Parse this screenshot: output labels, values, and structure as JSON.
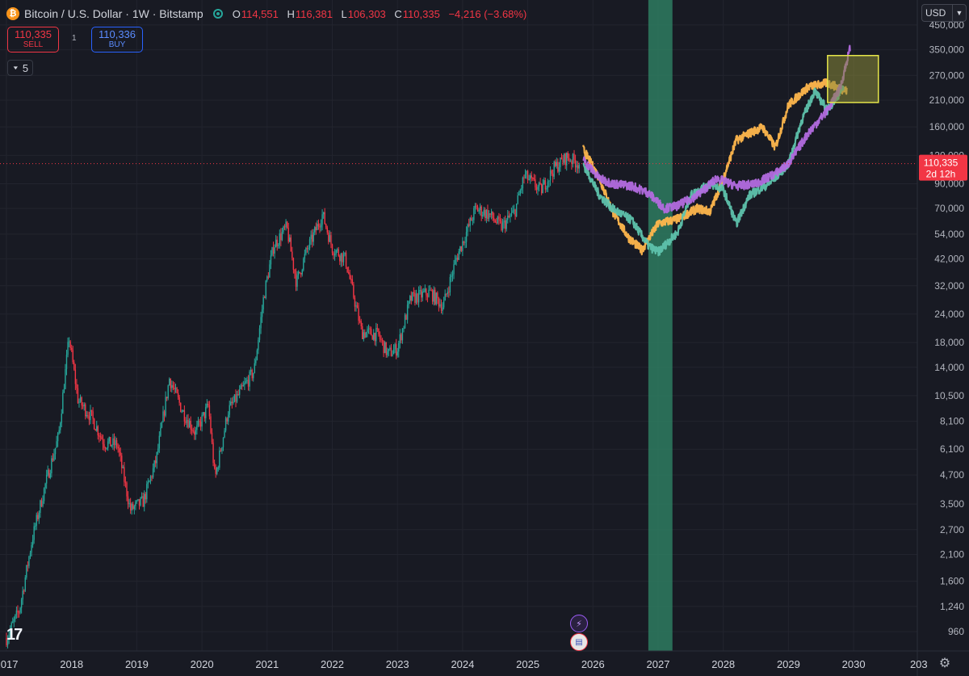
{
  "header": {
    "symbol": "Bitcoin / U.S. Dollar · 1W · Bitstamp",
    "btc_glyph": "₿",
    "ohlc": [
      {
        "key": "O",
        "value": "114,551"
      },
      {
        "key": "H",
        "value": "116,381"
      },
      {
        "key": "L",
        "value": "106,303"
      },
      {
        "key": "C",
        "value": "110,335"
      }
    ],
    "change": "−4,216 (−3.68%)"
  },
  "trade": {
    "sell_price": "110,335",
    "sell_label": "SELL",
    "spread": "1",
    "buy_price": "110,336",
    "buy_label": "BUY"
  },
  "indicators_collapse": {
    "count": "5",
    "icon": "chevron-down-icon"
  },
  "currency": {
    "label": "USD",
    "icon": "chevron-down-icon"
  },
  "logo_text": "17",
  "events": {
    "ev1_icon": "lightning-icon",
    "ev2_icon": "us-flag-icon"
  },
  "settings_icon": "gear-icon",
  "colors": {
    "background": "#181a23",
    "up": "#26a69a",
    "down": "#f23645",
    "orange": "#ffb74d",
    "teal": "#5ec3ad",
    "purple": "#b36be0",
    "band": "#2e7d60",
    "box_fill": "#8a8a3a",
    "box_stroke": "#e6e64a",
    "price_line": "#f23645"
  },
  "chart_data": {
    "type": "candlestick",
    "scale": "log",
    "grid": true,
    "x_ticks": [
      "2017",
      "2018",
      "2019",
      "2020",
      "2021",
      "2022",
      "2023",
      "2024",
      "2025",
      "2026",
      "2027",
      "2028",
      "2029",
      "2030",
      "203"
    ],
    "y_ticks": [
      "450,000",
      "350,000",
      "270,000",
      "210,000",
      "160,000",
      "120,000",
      "90,000",
      "70,000",
      "54,000",
      "42,000",
      "32,000",
      "24,000",
      "18,000",
      "14,000",
      "10,500",
      "8,100",
      "6,100",
      "4,700",
      "3,500",
      "2,700",
      "2,100",
      "1,600",
      "1,240",
      "960"
    ],
    "last_price": {
      "value": 110335,
      "label": "110,335",
      "countdown": "2d 12h"
    },
    "historical_path": [
      [
        2017.0,
        900
      ],
      [
        2017.2,
        1200
      ],
      [
        2017.4,
        2500
      ],
      [
        2017.6,
        4300
      ],
      [
        2017.8,
        7000
      ],
      [
        2017.96,
        19000
      ],
      [
        2018.1,
        10000
      ],
      [
        2018.3,
        8500
      ],
      [
        2018.5,
        6500
      ],
      [
        2018.7,
        6400
      ],
      [
        2018.9,
        3300
      ],
      [
        2019.1,
        3600
      ],
      [
        2019.3,
        5500
      ],
      [
        2019.5,
        12500
      ],
      [
        2019.7,
        9000
      ],
      [
        2019.9,
        7200
      ],
      [
        2020.1,
        9500
      ],
      [
        2020.2,
        4500
      ],
      [
        2020.4,
        9000
      ],
      [
        2020.6,
        11000
      ],
      [
        2020.8,
        13500
      ],
      [
        2020.95,
        29000
      ],
      [
        2021.1,
        48000
      ],
      [
        2021.3,
        58000
      ],
      [
        2021.45,
        33000
      ],
      [
        2021.6,
        45000
      ],
      [
        2021.85,
        66000
      ],
      [
        2022.0,
        47000
      ],
      [
        2022.2,
        42000
      ],
      [
        2022.45,
        20000
      ],
      [
        2022.7,
        19500
      ],
      [
        2022.85,
        16000
      ],
      [
        2023.0,
        17000
      ],
      [
        2023.2,
        28000
      ],
      [
        2023.5,
        30000
      ],
      [
        2023.7,
        26000
      ],
      [
        2023.9,
        42000
      ],
      [
        2024.2,
        70000
      ],
      [
        2024.4,
        66000
      ],
      [
        2024.6,
        58000
      ],
      [
        2024.8,
        68000
      ],
      [
        2024.95,
        98000
      ],
      [
        2025.2,
        84000
      ],
      [
        2025.4,
        105000
      ],
      [
        2025.6,
        118000
      ],
      [
        2025.8,
        110000
      ]
    ],
    "projections": [
      {
        "color": "orange",
        "path": [
          [
            2025.85,
            128000
          ],
          [
            2026.1,
            95000
          ],
          [
            2026.3,
            68000
          ],
          [
            2026.55,
            52000
          ],
          [
            2026.75,
            46000
          ],
          [
            2027.0,
            60000
          ],
          [
            2027.3,
            63000
          ],
          [
            2027.6,
            70000
          ],
          [
            2027.8,
            68000
          ],
          [
            2028.0,
            95000
          ],
          [
            2028.2,
            140000
          ],
          [
            2028.4,
            150000
          ],
          [
            2028.6,
            160000
          ],
          [
            2028.8,
            130000
          ],
          [
            2029.0,
            200000
          ],
          [
            2029.3,
            240000
          ],
          [
            2029.6,
            250000
          ],
          [
            2029.9,
            230000
          ]
        ]
      },
      {
        "color": "teal",
        "path": [
          [
            2025.85,
            110000
          ],
          [
            2026.1,
            80000
          ],
          [
            2026.3,
            70000
          ],
          [
            2026.6,
            62000
          ],
          [
            2026.85,
            48000
          ],
          [
            2027.0,
            45000
          ],
          [
            2027.3,
            55000
          ],
          [
            2027.5,
            80000
          ],
          [
            2027.8,
            90000
          ],
          [
            2028.0,
            85000
          ],
          [
            2028.2,
            60000
          ],
          [
            2028.4,
            80000
          ],
          [
            2028.7,
            90000
          ],
          [
            2029.0,
            110000
          ],
          [
            2029.2,
            170000
          ],
          [
            2029.4,
            230000
          ],
          [
            2029.6,
            190000
          ],
          [
            2029.85,
            240000
          ]
        ]
      },
      {
        "color": "purple",
        "path": [
          [
            2025.85,
            115000
          ],
          [
            2026.1,
            95000
          ],
          [
            2026.3,
            90000
          ],
          [
            2026.6,
            88000
          ],
          [
            2026.85,
            82000
          ],
          [
            2027.1,
            70000
          ],
          [
            2027.3,
            72000
          ],
          [
            2027.6,
            80000
          ],
          [
            2027.9,
            95000
          ],
          [
            2028.2,
            88000
          ],
          [
            2028.5,
            90000
          ],
          [
            2028.8,
            100000
          ],
          [
            2029.0,
            110000
          ],
          [
            2029.3,
            150000
          ],
          [
            2029.6,
            190000
          ],
          [
            2029.8,
            240000
          ],
          [
            2029.95,
            360000
          ]
        ]
      }
    ],
    "vertical_band": {
      "x_from": 2026.85,
      "x_to": 2027.22
    },
    "target_box": {
      "x_from": 2029.6,
      "x_to": 2030.38,
      "y_from": 205000,
      "y_to": 330000
    }
  }
}
